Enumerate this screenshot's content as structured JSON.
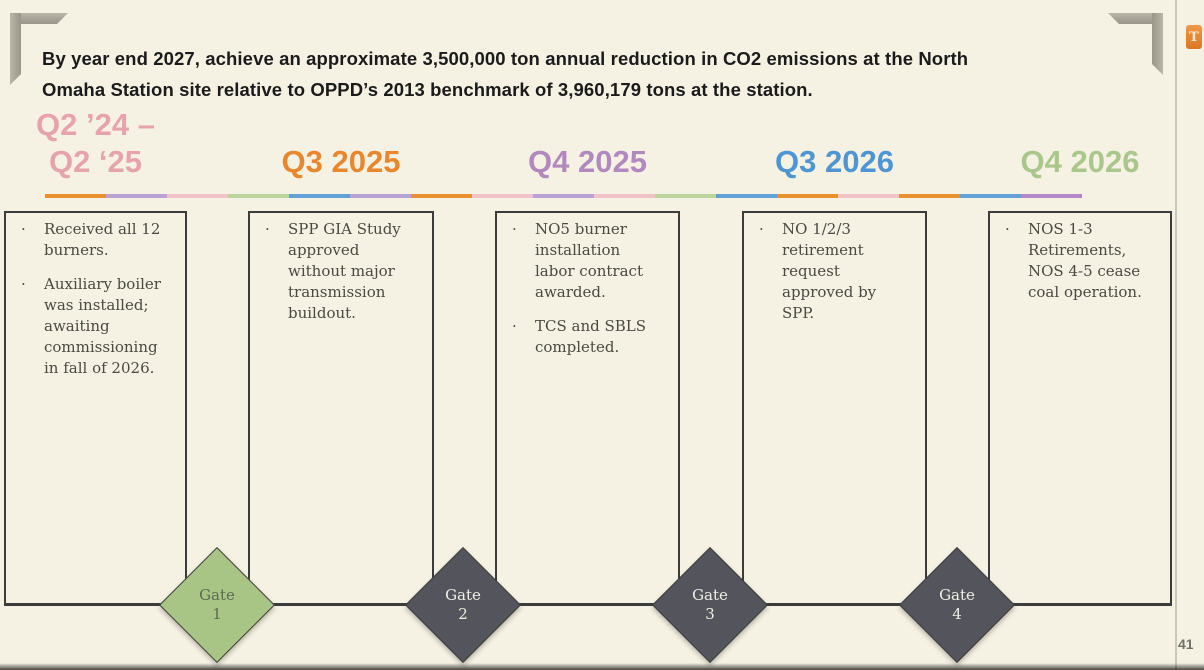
{
  "slide": {
    "title": {
      "line1": "By year end 2027, achieve an approximate 3,500,000 ton annual reduction in CO2 emissions at the North",
      "line2": "Omaha Station site relative to OPPD’s 2013 benchmark of 3,960,179 tons at the station."
    },
    "page_number": "41",
    "logo_letter": "T",
    "colors": {
      "background": "#f5f1e3",
      "title_text": "#1b1b1b",
      "box_border": "#3c3c3a",
      "box_text": "#4a4a42",
      "gate_green": "#a9c586",
      "gate_dark": "#54555c",
      "bracket_gray": "#aaa798",
      "logo_orange": "#dd7622",
      "page_number_gray": "#72726a",
      "right_edge_line": "#cbc7b6"
    },
    "rule_segments": [
      "#e8912e",
      "#b9a3d6",
      "#f0c3c8",
      "#bcd49e",
      "#62a0d8",
      "#b9a3d6",
      "#e8912e",
      "#f0c3c8",
      "#b9a3d6",
      "#f0c3c8",
      "#bcd49e",
      "#62a0d8",
      "#e8912e",
      "#f0c3c8",
      "#e8912e",
      "#62a0d8",
      "#b289c6"
    ],
    "columns": [
      {
        "header": "Q2 ’24 –\nQ2 ‘25",
        "header_color": "#e7a3ac",
        "bullet_glyph": "·",
        "bullets": [
          "Received all 12 burners.",
          "Auxiliary boiler was installed; awaiting commissioning in fall of 2026."
        ]
      },
      {
        "header": "Q3 2025",
        "header_color": "#e8872e",
        "bullet_glyph": "·",
        "bullets": [
          "SPP GIA Study approved without major transmission buildout."
        ]
      },
      {
        "header": "Q4 2025",
        "header_color": "#b289be",
        "bullet_glyph": "·",
        "bullets": [
          "NO5 burner installation labor contract awarded.",
          "TCS and SBLS completed."
        ]
      },
      {
        "header": "Q3 2026",
        "header_color": "#4e95d4",
        "bullet_glyph": "·",
        "bullets": [
          "NO 1/2/3 retirement request approved by SPP."
        ]
      },
      {
        "header": "Q4 2026",
        "header_color": "#a9c78b",
        "bullet_glyph": "·",
        "bullets": [
          "NOS 1-3 Retirements, NOS 4-5 cease coal operation."
        ]
      }
    ],
    "gates": [
      {
        "label": "Gate",
        "number": "1",
        "bg": "#a9c586",
        "fg": "#5c6b4e"
      },
      {
        "label": "Gate",
        "number": "2",
        "bg": "#54555c",
        "fg": "#efeee6"
      },
      {
        "label": "Gate",
        "number": "3",
        "bg": "#54555c",
        "fg": "#efeee6"
      },
      {
        "label": "Gate",
        "number": "4",
        "bg": "#54555c",
        "fg": "#efeee6"
      }
    ]
  }
}
